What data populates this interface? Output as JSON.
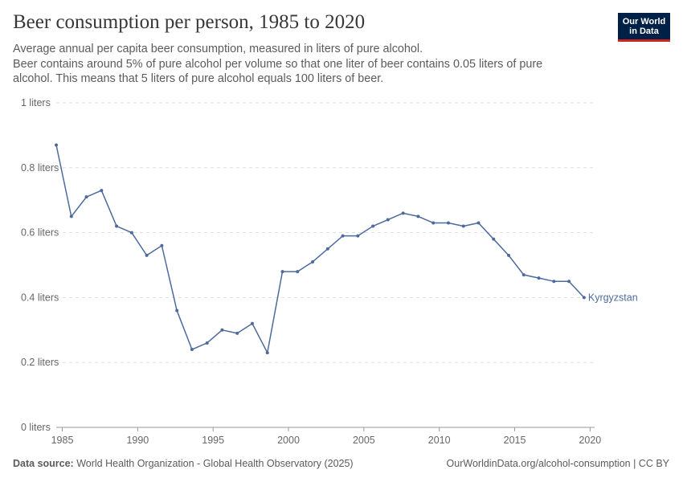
{
  "header": {
    "title": "Beer consumption per person, 1985 to 2020",
    "subtitle_line1": "Average annual per capita beer consumption, measured in liters of pure alcohol.",
    "subtitle_line2": "Beer contains around 5% of pure alcohol per volume so that one liter of beer contains 0.05 liters of pure alcohol. This means that 5 liters of pure alcohol equals 100 liters of beer."
  },
  "logo": {
    "line1": "Our World",
    "line2": "in Data",
    "bg_color": "#002147",
    "accent_color": "#ce261e"
  },
  "footer": {
    "source_label": "Data source:",
    "source_text": "World Health Organization - Global Health Observatory (2025)",
    "url_text": "OurWorldinData.org/alcohol-consumption | CC BY"
  },
  "chart_data": {
    "type": "line",
    "ylim": [
      0,
      1
    ],
    "xlim": [
      1984.6,
      2020.3
    ],
    "y_ticks": [
      {
        "value": 0,
        "label": "0 liters"
      },
      {
        "value": 0.2,
        "label": "0.2 liters"
      },
      {
        "value": 0.4,
        "label": "0.4 liters"
      },
      {
        "value": 0.6,
        "label": "0.6 liters"
      },
      {
        "value": 0.8,
        "label": "0.8 liters"
      },
      {
        "value": 1,
        "label": "1 liters"
      }
    ],
    "x_ticks": [
      {
        "value": 1985,
        "label": "1985"
      },
      {
        "value": 1990,
        "label": "1990"
      },
      {
        "value": 1995,
        "label": "1995"
      },
      {
        "value": 2000,
        "label": "2000"
      },
      {
        "value": 2005,
        "label": "2005"
      },
      {
        "value": 2010,
        "label": "2010"
      },
      {
        "value": 2015,
        "label": "2015"
      },
      {
        "value": 2020,
        "label": "2020"
      }
    ],
    "grid": true,
    "series": [
      {
        "name": "Kyrgyzstan",
        "color": "#4c6a9c",
        "x": [
          1984.6,
          1985.6,
          1986.6,
          1987.6,
          1988.6,
          1989.6,
          1990.6,
          1991.6,
          1992.6,
          1993.6,
          1994.6,
          1995.6,
          1996.6,
          1997.6,
          1998.6,
          1999.6,
          2000.6,
          2001.6,
          2002.6,
          2003.6,
          2004.6,
          2005.6,
          2006.6,
          2007.6,
          2008.6,
          2009.6,
          2010.6,
          2011.6,
          2012.6,
          2013.6,
          2014.6,
          2015.6,
          2016.6,
          2017.6,
          2018.6,
          2019.6
        ],
        "values": [
          0.87,
          0.65,
          0.71,
          0.73,
          0.62,
          0.6,
          0.53,
          0.56,
          0.36,
          0.24,
          0.26,
          0.3,
          0.29,
          0.32,
          0.23,
          0.48,
          0.48,
          0.51,
          0.55,
          0.59,
          0.59,
          0.62,
          0.64,
          0.66,
          0.65,
          0.63,
          0.63,
          0.62,
          0.63,
          0.58,
          0.53,
          0.47,
          0.46,
          0.45,
          0.45,
          0.4
        ]
      }
    ]
  }
}
